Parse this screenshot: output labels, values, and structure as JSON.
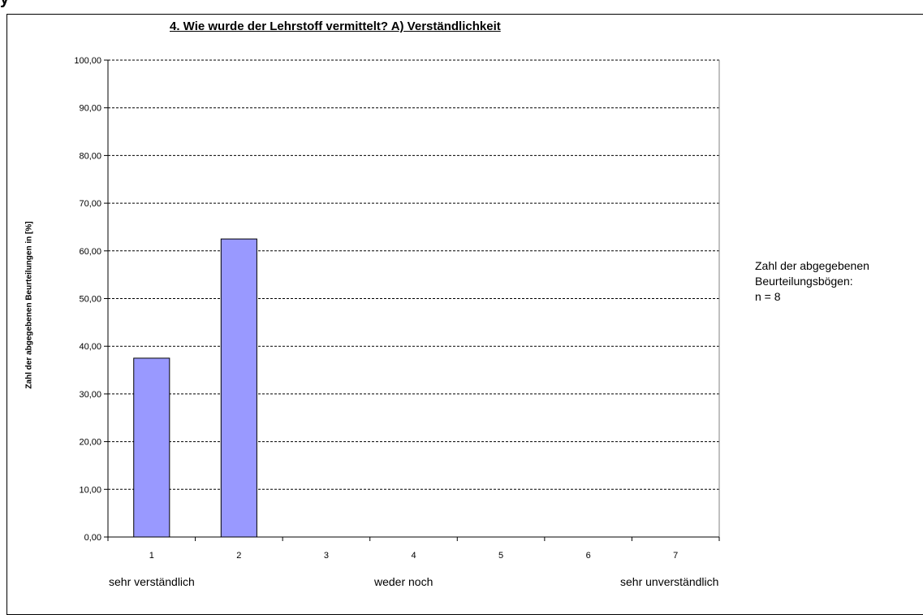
{
  "top_crop_text": "y",
  "chart_data": {
    "type": "bar",
    "title": "4. Wie wurde der Lehrstoff vermittelt?    A) Verständlichkeit",
    "categories": [
      "1",
      "2",
      "3",
      "4",
      "5",
      "6",
      "7"
    ],
    "values": [
      37.5,
      62.5,
      0,
      0,
      0,
      0,
      0
    ],
    "y_tick_labels": [
      "0,00",
      "10,00",
      "20,00",
      "30,00",
      "40,00",
      "50,00",
      "60,00",
      "70,00",
      "80,00",
      "90,00",
      "100,00"
    ],
    "ylabel": "Zahl der abgegebenen Beurteilungen in [%]",
    "xlabel": "",
    "ylim": [
      0,
      100
    ],
    "grid": "horizontal dashed",
    "bar_color": "#9999FF",
    "scale_labels": {
      "left": "sehr verständlich",
      "middle": "weder noch",
      "right": "sehr unverständlich"
    }
  },
  "info_box": {
    "line1": "Zahl der abgegebenen",
    "line2": "Beurteilungsbögen:",
    "line3": "n = 8"
  }
}
